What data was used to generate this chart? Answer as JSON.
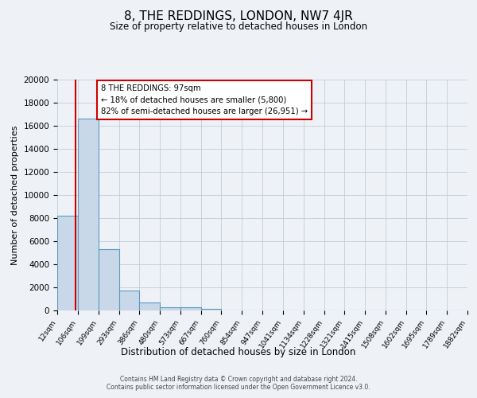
{
  "title": "8, THE REDDINGS, LONDON, NW7 4JR",
  "subtitle": "Size of property relative to detached houses in London",
  "xlabel": "Distribution of detached houses by size in London",
  "ylabel": "Number of detached properties",
  "bin_edges": [
    12,
    106,
    199,
    293,
    386,
    480,
    573,
    667,
    760,
    854,
    947,
    1041,
    1134,
    1228,
    1321,
    1415,
    1508,
    1602,
    1695,
    1789,
    1882
  ],
  "bin_labels": [
    "12sqm",
    "106sqm",
    "199sqm",
    "293sqm",
    "386sqm",
    "480sqm",
    "573sqm",
    "667sqm",
    "760sqm",
    "854sqm",
    "947sqm",
    "1041sqm",
    "1134sqm",
    "1228sqm",
    "1321sqm",
    "1415sqm",
    "1508sqm",
    "1602sqm",
    "1695sqm",
    "1789sqm",
    "1882sqm"
  ],
  "counts": [
    8200,
    16600,
    5300,
    1750,
    700,
    300,
    250,
    130,
    0,
    0,
    0,
    0,
    0,
    0,
    0,
    0,
    0,
    0,
    0,
    0
  ],
  "bar_color": "#c8d8e8",
  "bar_edge_color": "#5a9abf",
  "marker_value": 97,
  "marker_color": "#cc0000",
  "annotation_title": "8 THE REDDINGS: 97sqm",
  "annotation_line1": "← 18% of detached houses are smaller (5,800)",
  "annotation_line2": "82% of semi-detached houses are larger (26,951) →",
  "annotation_box_color": "#ffffff",
  "annotation_box_edge": "#cc0000",
  "ylim": [
    0,
    20000
  ],
  "yticks": [
    0,
    2000,
    4000,
    6000,
    8000,
    10000,
    12000,
    14000,
    16000,
    18000,
    20000
  ],
  "background_color": "#eef2f7",
  "footer1": "Contains HM Land Registry data © Crown copyright and database right 2024.",
  "footer2": "Contains public sector information licensed under the Open Government Licence v3.0."
}
